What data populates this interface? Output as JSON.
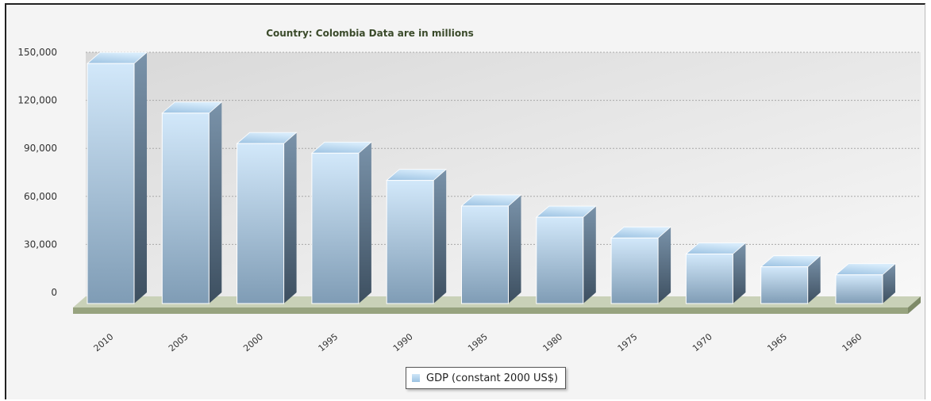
{
  "chart_data": {
    "type": "bar",
    "title": "Country: Colombia  Data are in millions",
    "categories": [
      "2010",
      "2005",
      "2000",
      "1995",
      "1990",
      "1985",
      "1980",
      "1975",
      "1970",
      "1965",
      "1960"
    ],
    "series": [
      {
        "name": "GDP (constant 2000 US$)",
        "values": [
          143000,
          112000,
          93000,
          87000,
          70000,
          54000,
          47000,
          34000,
          24000,
          16000,
          11000
        ]
      }
    ],
    "y_ticks": [
      "0",
      "30,000",
      "60,000",
      "90,000",
      "120,000",
      "150,000"
    ],
    "ylim": [
      0,
      150000
    ],
    "grid": true,
    "legend_position": "bottom",
    "style": "3d",
    "colors": {
      "bar_top": "#cfe6f8",
      "bar_bottom": "#7f9cb5",
      "floor": "#b8c2a6",
      "title": "#3a4a2a"
    }
  }
}
